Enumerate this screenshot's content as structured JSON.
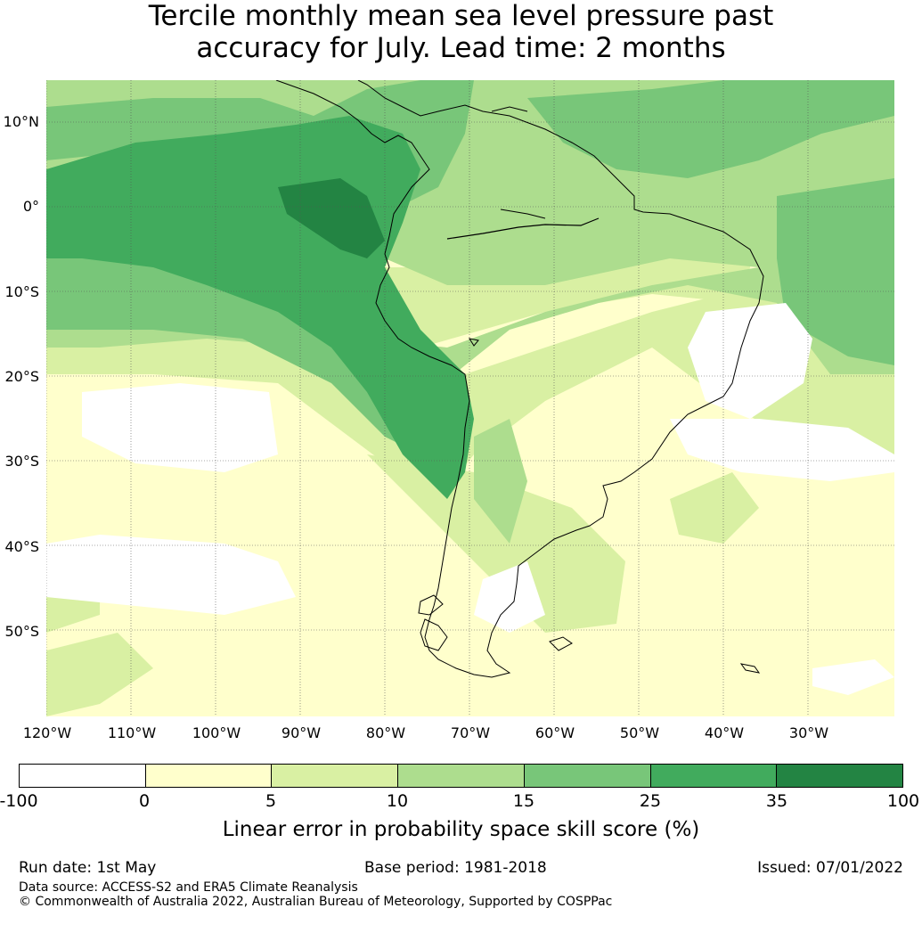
{
  "title": {
    "line1": "Tercile monthly mean sea level pressure past",
    "line2": "accuracy for July. Lead time: 2 months"
  },
  "map": {
    "latitude_labels": [
      "10°N",
      "0°",
      "10°S",
      "20°S",
      "30°S",
      "40°S",
      "50°S"
    ],
    "longitude_labels": [
      "120°W",
      "110°W",
      "100°W",
      "90°W",
      "80°W",
      "70°W",
      "60°W",
      "50°W",
      "40°W",
      "30°W"
    ],
    "colors": {
      "bin_-100_0": "#ffffff",
      "bin_0_5": "#ffffcc",
      "bin_5_10": "#d9f0a3",
      "bin_10_15": "#addd8e",
      "bin_15_25": "#78c679",
      "bin_25_35": "#41ab5d",
      "bin_35_100": "#238443",
      "coastline": "#000000",
      "gridline": "#555555"
    }
  },
  "colorbar": {
    "label": "Linear error in probability space skill score (%)",
    "ticks": [
      "-100",
      "0",
      "5",
      "10",
      "15",
      "25",
      "35",
      "100"
    ],
    "colors": [
      "#ffffff",
      "#ffffcc",
      "#d9f0a3",
      "#addd8e",
      "#78c679",
      "#41ab5d",
      "#238443"
    ]
  },
  "footer": {
    "run_date": "Run date: 1st May",
    "base_period": "Base period: 1981-2018",
    "issued": "Issued: 07/01/2022",
    "data_source": "Data source: ACCESS-S2 and ERA5 Climate Reanalysis",
    "copyright": "© Commonwealth of Australia 2022, Australian Bureau of Meteorology, Supported by COSPPac"
  }
}
